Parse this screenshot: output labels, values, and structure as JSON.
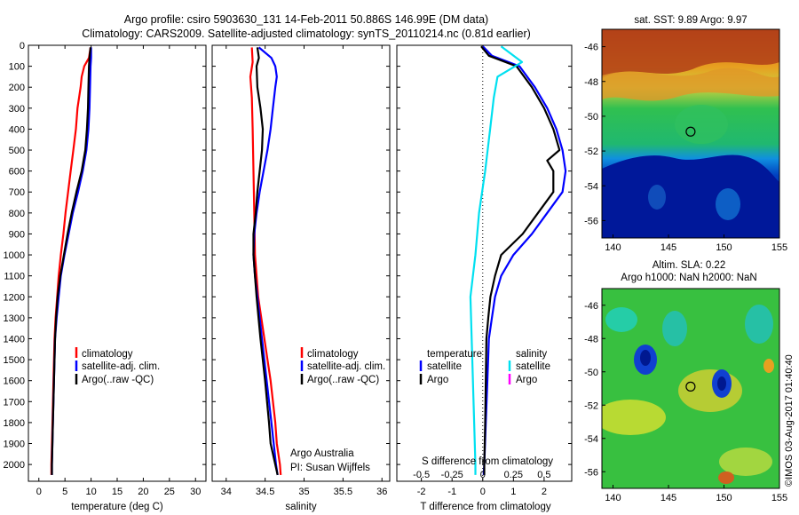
{
  "title_line1": "Argo profile: csiro 5903630_131 14-Feb-2011 50.886S 146.99E (DM data)",
  "title_line2": "Climatology: CARS2009. Satellite-adjusted climatology: synTS_20110214.nc (0.81d earlier)",
  "depth_ticks": [
    "0",
    "100",
    "200",
    "300",
    "400",
    "500",
    "600",
    "700",
    "800",
    "900",
    "1000",
    "1100",
    "1200",
    "1300",
    "1400",
    "1500",
    "1600",
    "1700",
    "1800",
    "1900",
    "2000"
  ],
  "colors": {
    "climatology": "#ff0000",
    "satellite": "#0000ff",
    "argo": "#000000",
    "sat_salinity": "#00e0f0",
    "argo_magenta": "#ff00ff"
  },
  "footer_note": {
    "line1": "Argo Australia",
    "line2": "PI: Susan Wijffels"
  },
  "imos_stamp": "©IMOS 03-Aug-2017 01:40:40",
  "chart_data": [
    {
      "type": "line",
      "panel": "temperature",
      "xlabel": "temperature (deg C)",
      "xticks": [
        "0",
        "5",
        "10",
        "15",
        "20",
        "25",
        "30"
      ],
      "xlim": [
        -2,
        32
      ],
      "ylim": [
        0,
        2080
      ],
      "legend": [
        "climatology",
        "satellite-adj. clim.",
        "Argo(..raw -QC)"
      ],
      "series": [
        {
          "name": "climatology",
          "depth": [
            10,
            60,
            100,
            150,
            200,
            300,
            400,
            500,
            600,
            700,
            800,
            900,
            1000,
            1100,
            1200,
            1300,
            1400,
            1600,
            1800,
            2000,
            2050
          ],
          "values": [
            9.9,
            9.6,
            8.7,
            8.2,
            8.0,
            7.4,
            7.1,
            6.6,
            6.1,
            5.6,
            5.1,
            4.7,
            4.2,
            3.8,
            3.5,
            3.2,
            3.0,
            2.8,
            2.6,
            2.4,
            2.4
          ]
        },
        {
          "name": "satellite-adj. clim.",
          "depth": [
            10,
            60,
            100,
            200,
            300,
            400,
            500,
            600,
            700,
            800,
            900,
            1000,
            1100,
            1200,
            1300,
            1400,
            1600,
            1800,
            2000,
            2050
          ],
          "values": [
            10.0,
            10.0,
            9.9,
            9.8,
            9.7,
            9.5,
            9.1,
            8.4,
            7.5,
            6.5,
            5.7,
            4.9,
            4.2,
            3.8,
            3.4,
            3.1,
            2.9,
            2.7,
            2.5,
            2.5
          ]
        },
        {
          "name": "Argo(..raw -QC)",
          "depth": [
            10,
            60,
            100,
            200,
            300,
            400,
            500,
            600,
            700,
            800,
            900,
            1000,
            1100,
            1200,
            1300,
            1400,
            1600,
            1800,
            2000,
            2050
          ],
          "values": [
            9.9,
            9.7,
            9.6,
            9.5,
            9.4,
            9.2,
            8.9,
            8.2,
            7.2,
            6.3,
            5.5,
            4.8,
            4.1,
            3.6,
            3.3,
            3.1,
            2.9,
            2.7,
            2.5,
            2.5
          ]
        }
      ]
    },
    {
      "type": "line",
      "panel": "salinity",
      "xlabel": "salinity",
      "xticks": [
        "34",
        "34.5",
        "35",
        "35.5",
        "36"
      ],
      "xlim": [
        33.82,
        36.1
      ],
      "ylim": [
        0,
        2080
      ],
      "legend": [
        "climatology",
        "satellite-adj. clim.",
        "Argo(..raw -QC)"
      ],
      "series": [
        {
          "name": "climatology",
          "depth": [
            10,
            80,
            150,
            250,
            400,
            600,
            800,
            1000,
            1200,
            1400,
            1600,
            1800,
            1900,
            2000,
            2050
          ],
          "values": [
            34.33,
            34.34,
            34.31,
            34.33,
            34.34,
            34.35,
            34.36,
            34.37,
            34.41,
            34.49,
            34.57,
            34.63,
            34.65,
            34.69,
            34.7
          ]
        },
        {
          "name": "satellite-adj. clim.",
          "depth": [
            10,
            60,
            100,
            150,
            200,
            300,
            400,
            500,
            600,
            700,
            800,
            900,
            1000,
            1100,
            1200,
            1400,
            1600,
            1800,
            2000,
            2050
          ],
          "values": [
            34.42,
            34.58,
            34.63,
            34.65,
            34.63,
            34.6,
            34.57,
            34.53,
            34.48,
            34.43,
            34.39,
            34.36,
            34.35,
            34.37,
            34.4,
            34.46,
            34.52,
            34.58,
            34.64,
            34.66
          ]
        },
        {
          "name": "Argo(..raw -QC)",
          "depth": [
            10,
            60,
            100,
            200,
            300,
            400,
            500,
            600,
            700,
            800,
            900,
            1000,
            1100,
            1200,
            1400,
            1600,
            1800,
            1900,
            2000,
            2050
          ],
          "values": [
            34.4,
            34.42,
            34.39,
            34.4,
            34.44,
            34.47,
            34.46,
            34.43,
            34.4,
            34.38,
            34.35,
            34.35,
            34.37,
            34.39,
            34.44,
            34.5,
            34.55,
            34.57,
            34.63,
            34.66
          ]
        }
      ]
    },
    {
      "type": "line",
      "panel": "differences",
      "xlabel": "T difference from climatology",
      "xlabel_top": "S difference from climatology",
      "xticks_bottom": [
        "-2",
        "-1",
        "0",
        "1",
        "2"
      ],
      "xticks_top": [
        "-0.5",
        "-0.25",
        "0",
        "0.25",
        "0.5"
      ],
      "xlim": [
        -2.8,
        2.9
      ],
      "ylim": [
        0,
        2080
      ],
      "legend_headers": [
        "temperature",
        "salinity"
      ],
      "legend_left": [
        "satellite",
        "Argo"
      ],
      "legend_right": [
        "satellite",
        "Argo"
      ],
      "series": [
        {
          "name": "temperature satellite",
          "depth": [
            5,
            50,
            100,
            200,
            300,
            400,
            500,
            600,
            700,
            800,
            900,
            1000,
            1100,
            1200,
            1300,
            1400,
            1600,
            1800,
            2000,
            2050
          ],
          "values": [
            0.0,
            0.3,
            1.2,
            1.7,
            2.1,
            2.4,
            2.6,
            2.7,
            2.6,
            2.1,
            1.6,
            1.0,
            0.6,
            0.4,
            0.3,
            0.2,
            0.15,
            0.1,
            0.05,
            0.03
          ]
        },
        {
          "name": "temperature Argo",
          "depth": [
            5,
            50,
            100,
            200,
            300,
            400,
            500,
            550,
            600,
            700,
            800,
            900,
            1000,
            1100,
            1200,
            1300,
            1400,
            1600,
            1800,
            2000,
            2050
          ],
          "values": [
            -0.05,
            0.2,
            1.1,
            1.6,
            2.0,
            2.3,
            2.5,
            2.1,
            2.3,
            2.3,
            1.8,
            1.3,
            0.6,
            0.4,
            0.25,
            0.18,
            0.12,
            0.1,
            0.08,
            0.05,
            0.05
          ]
        },
        {
          "name": "salinity satellite",
          "depth": [
            5,
            80,
            150,
            250,
            400,
            600,
            800,
            1000,
            1200,
            1400,
            1600,
            1800,
            2000,
            2050
          ],
          "values": [
            0.15,
            0.32,
            0.12,
            0.09,
            0.06,
            0.02,
            -0.03,
            -0.06,
            -0.1,
            -0.09,
            -0.08,
            -0.07,
            -0.06,
            -0.06
          ]
        }
      ]
    }
  ],
  "maps": [
    {
      "title": "sat. SST: 9.89 Argo: 9.97",
      "xticks": [
        "140",
        "145",
        "150",
        "155"
      ],
      "yticks": [
        "-46",
        "-48",
        "-50",
        "-52",
        "-54",
        "-56"
      ],
      "marker": {
        "lon": 146.99,
        "lat": -50.886
      }
    },
    {
      "title_line1": "Altim. SLA: 0.22",
      "title_line2": "Argo h1000: NaN h2000: NaN",
      "xticks": [
        "140",
        "145",
        "150",
        "155"
      ],
      "yticks": [
        "-46",
        "-48",
        "-50",
        "-52",
        "-54",
        "-56"
      ],
      "marker": {
        "lon": 146.99,
        "lat": -50.886
      }
    }
  ]
}
